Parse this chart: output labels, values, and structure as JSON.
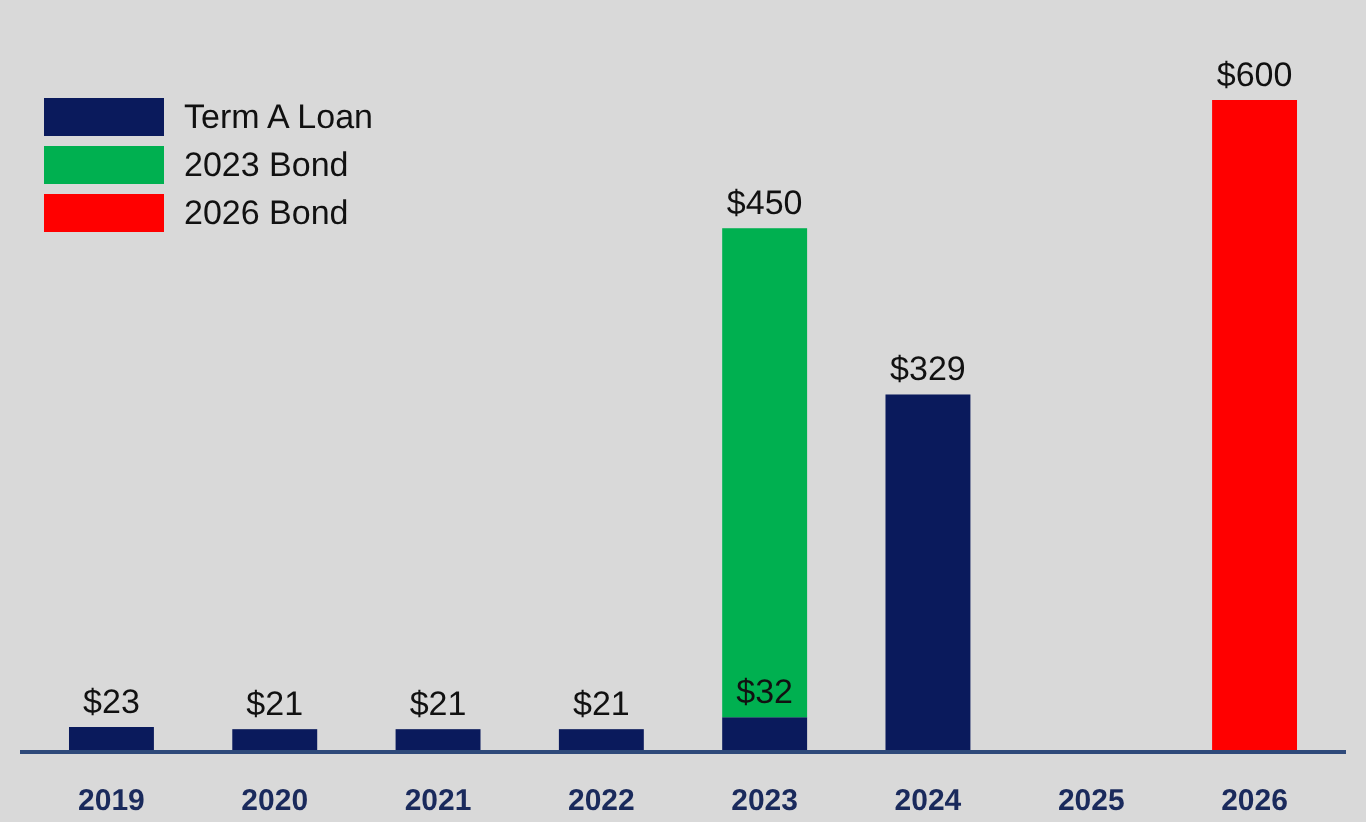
{
  "chart_data": {
    "type": "bar",
    "stacked": true,
    "legend": "top left",
    "categories": [
      "2019",
      "2020",
      "2021",
      "2022",
      "2023",
      "2024",
      "2025",
      "2026"
    ],
    "series": [
      {
        "name": "Term A Loan",
        "color": "#0a1a5c",
        "values": [
          23,
          21,
          21,
          21,
          32,
          329,
          null,
          null
        ],
        "value_labels": [
          "$23",
          "$21",
          "$21",
          "$21",
          "$32",
          "$329",
          null,
          null
        ]
      },
      {
        "name": "2023 Bond",
        "color": "#00b050",
        "values": [
          null,
          null,
          null,
          null,
          450,
          null,
          null,
          null
        ],
        "value_labels": [
          null,
          null,
          null,
          null,
          "$450",
          null,
          null,
          null
        ]
      },
      {
        "name": "2026 Bond",
        "color": "#ff0000",
        "values": [
          null,
          null,
          null,
          null,
          null,
          null,
          null,
          600
        ],
        "value_labels": [
          null,
          null,
          null,
          null,
          null,
          null,
          null,
          "$600"
        ]
      }
    ]
  }
}
